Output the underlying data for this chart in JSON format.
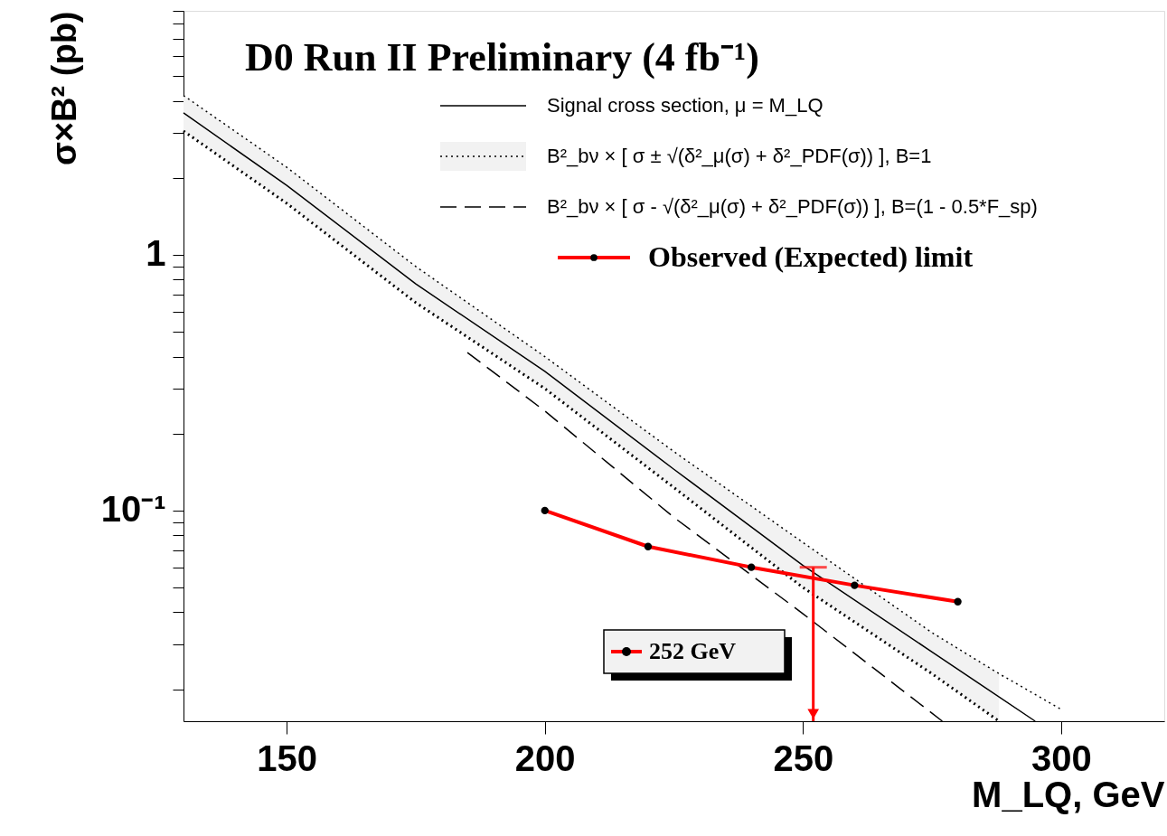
{
  "chart_data": {
    "type": "line",
    "title": "D0 Run II Preliminary (4 fb⁻¹)",
    "xlabel": "M_LQ, GeV",
    "ylabel": "σ×B² (pb)",
    "xlim": [
      130,
      320
    ],
    "xticks": [
      150,
      200,
      250,
      300
    ],
    "ylim": [
      0.015,
      9
    ],
    "log": true,
    "yticks": [
      {
        "value": 0.02,
        "label": null
      },
      {
        "value": 0.03,
        "label": null
      },
      {
        "value": 0.04,
        "label": null
      },
      {
        "value": 0.05,
        "label": null
      },
      {
        "value": 0.06,
        "label": null
      },
      {
        "value": 0.07,
        "label": null
      },
      {
        "value": 0.08,
        "label": null
      },
      {
        "value": 0.09,
        "label": null
      },
      {
        "value": 0.1,
        "label": "10⁻¹"
      },
      {
        "value": 0.2,
        "label": null
      },
      {
        "value": 0.3,
        "label": null
      },
      {
        "value": 0.4,
        "label": null
      },
      {
        "value": 0.5,
        "label": null
      },
      {
        "value": 0.6,
        "label": null
      },
      {
        "value": 0.7,
        "label": null
      },
      {
        "value": 0.8,
        "label": null
      },
      {
        "value": 0.9,
        "label": null
      },
      {
        "value": 1,
        "label": "1"
      },
      {
        "value": 2,
        "label": null
      },
      {
        "value": 3,
        "label": null
      },
      {
        "value": 4,
        "label": null
      },
      {
        "value": 5,
        "label": null
      },
      {
        "value": 6,
        "label": null
      },
      {
        "value": 7,
        "label": null
      },
      {
        "value": 8,
        "label": null
      },
      {
        "value": 9,
        "label": null
      }
    ],
    "grid": false,
    "legend": "top right",
    "series": [
      {
        "name": "Signal cross section, μ = M_LQ",
        "color": "#000000",
        "line_style": "solid",
        "x": [
          130,
          150,
          175,
          200,
          225,
          250,
          275,
          295
        ],
        "values": [
          3.59,
          1.87,
          0.77,
          0.35,
          0.145,
          0.061,
          0.028,
          0.015
        ]
      },
      {
        "name": "B²_bν × [ σ ± √(δ²_μ(σ) + δ²_PDF(σ)) ], B=1",
        "color": "#000000",
        "line_style": "dotted",
        "x": [
          130,
          150,
          175,
          200,
          225,
          250,
          275,
          288,
          300
        ],
        "values": [
          4.2,
          2.2,
          0.9,
          0.4,
          0.17,
          0.075,
          0.0333,
          0.023,
          0.0167
        ],
        "lower": [
          3.05,
          1.59,
          0.65,
          0.3,
          0.123,
          0.05,
          0.023,
          0.015,
          null
        ],
        "upper": [
          4.2,
          2.2,
          0.9,
          0.4,
          0.17,
          0.075,
          0.0333,
          0.023,
          null
        ]
      },
      {
        "name": "B²_bν × [ σ - √(δ²_μ(σ) + δ²_PDF(σ)) ], B=(1 - 0.5*F_sp)",
        "color": "#000000",
        "line_style": "dashed",
        "x": [
          185,
          200,
          225,
          250,
          277
        ],
        "values": [
          0.415,
          0.245,
          0.094,
          0.0395,
          0.015
        ]
      },
      {
        "color": "#000000",
        "line_style": "dotted",
        "x": [
          130,
          150,
          175,
          200,
          225,
          250,
          275,
          288
        ],
        "values": [
          3.05,
          1.59,
          0.65,
          0.3,
          0.123,
          0.05,
          0.023,
          0.015
        ]
      },
      {
        "color": "#ff0000",
        "line_style": "solid",
        "x": [
          252,
          252
        ],
        "values": [
          0.06,
          0.015
        ]
      },
      {
        "name": "Observed (Expected) limit",
        "color": "#ff0000",
        "line_style": "solid",
        "marker": "circle",
        "x": [
          200,
          220,
          240,
          260,
          280
        ],
        "values": [
          0.1,
          0.0723,
          0.06,
          0.051,
          0.044
        ]
      }
    ],
    "annotations": [
      "252 GeV"
    ]
  }
}
